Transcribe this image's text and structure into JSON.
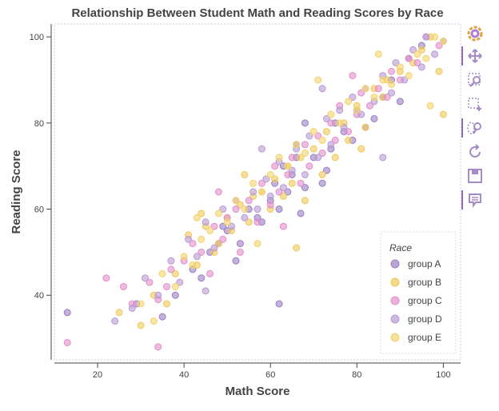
{
  "chart_data": {
    "type": "scatter",
    "title": "Relationship Between Student Math and Reading Scores by Race",
    "xlabel": "Math Score",
    "ylabel": "Reading Score",
    "xlim": [
      10,
      104
    ],
    "ylim": [
      25,
      103
    ],
    "xticks": [
      "20",
      "40",
      "60",
      "80",
      "100"
    ],
    "yticks": [
      "40",
      "60",
      "80",
      "100"
    ],
    "grid": false,
    "legend_position": "bottom-right",
    "legend_title": "Race",
    "series": [
      {
        "name": "group A",
        "color": "#9b7fc4",
        "x": [
          13,
          29,
          35,
          38,
          42,
          44,
          46,
          48,
          50,
          52,
          55,
          57,
          58,
          60,
          61,
          62,
          63,
          64,
          65,
          66,
          67,
          68,
          70,
          72,
          74,
          75,
          77,
          79,
          80,
          82,
          84,
          86,
          88,
          90,
          92,
          95,
          62,
          49,
          53,
          68,
          73,
          66
        ],
        "y": [
          36,
          38,
          35,
          40,
          46,
          44,
          50,
          52,
          55,
          48,
          60,
          58,
          57,
          62,
          66,
          60,
          70,
          64,
          68,
          72,
          59,
          65,
          72,
          66,
          74,
          80,
          78,
          76,
          83,
          79,
          81,
          86,
          90,
          85,
          95,
          98,
          38,
          56,
          52,
          80,
          69,
          75
        ]
      },
      {
        "name": "group B",
        "color": "#f0c95a",
        "x": [
          25,
          30,
          33,
          36,
          38,
          41,
          43,
          45,
          47,
          48,
          50,
          51,
          53,
          55,
          56,
          58,
          60,
          61,
          63,
          64,
          65,
          67,
          68,
          70,
          72,
          73,
          75,
          77,
          78,
          80,
          82,
          84,
          86,
          87,
          90,
          93,
          95,
          97,
          99,
          100,
          44,
          54,
          66,
          81
        ],
        "y": [
          36,
          33,
          40,
          38,
          45,
          54,
          47,
          56,
          50,
          52,
          58,
          55,
          61,
          57,
          63,
          64,
          60,
          67,
          63,
          70,
          66,
          72,
          62,
          74,
          68,
          78,
          72,
          80,
          76,
          84,
          79,
          88,
          86,
          90,
          92,
          94,
          97,
          100,
          92,
          82,
          59,
          68,
          51,
          74
        ]
      },
      {
        "name": "group C",
        "color": "#e38fcb",
        "x": [
          13,
          22,
          26,
          28,
          32,
          34,
          36,
          37,
          40,
          42,
          44,
          46,
          47,
          49,
          50,
          52,
          53,
          55,
          57,
          58,
          60,
          61,
          62,
          64,
          65,
          67,
          68,
          69,
          71,
          72,
          74,
          75,
          76,
          78,
          80,
          81,
          83,
          85,
          87,
          88,
          90,
          92,
          94,
          96,
          99,
          34,
          48,
          63,
          79
        ],
        "y": [
          29,
          44,
          42,
          38,
          43,
          39,
          42,
          46,
          48,
          52,
          50,
          45,
          56,
          53,
          58,
          60,
          50,
          62,
          57,
          66,
          61,
          70,
          64,
          68,
          72,
          66,
          75,
          70,
          77,
          73,
          80,
          76,
          84,
          78,
          82,
          87,
          84,
          88,
          86,
          92,
          90,
          95,
          94,
          100,
          98,
          28,
          64,
          56,
          91
        ]
      },
      {
        "name": "group D",
        "color": "#b99bd3",
        "x": [
          24,
          28,
          31,
          34,
          37,
          39,
          41,
          43,
          45,
          47,
          49,
          51,
          52,
          54,
          56,
          57,
          59,
          60,
          62,
          63,
          65,
          66,
          68,
          69,
          71,
          73,
          74,
          76,
          77,
          79,
          81,
          82,
          84,
          86,
          88,
          89,
          91,
          93,
          95,
          96,
          98,
          100,
          45,
          58,
          72,
          86
        ],
        "y": [
          34,
          37,
          44,
          40,
          48,
          43,
          53,
          49,
          57,
          51,
          60,
          56,
          62,
          58,
          64,
          60,
          67,
          63,
          71,
          65,
          69,
          74,
          68,
          77,
          72,
          81,
          75,
          83,
          79,
          86,
          82,
          88,
          85,
          91,
          87,
          94,
          90,
          97,
          93,
          100,
          96,
          99,
          41,
          74,
          88,
          72
        ]
      },
      {
        "name": "group E",
        "color": "#f3d36e",
        "x": [
          30,
          33,
          35,
          38,
          40,
          42,
          44,
          46,
          48,
          50,
          52,
          54,
          56,
          58,
          60,
          62,
          64,
          66,
          68,
          70,
          72,
          74,
          76,
          78,
          80,
          82,
          84,
          86,
          88,
          90,
          92,
          94,
          96,
          98,
          100,
          43,
          57,
          71,
          85,
          97
        ],
        "y": [
          38,
          34,
          45,
          42,
          49,
          47,
          53,
          55,
          59,
          57,
          62,
          60,
          66,
          64,
          68,
          72,
          70,
          75,
          73,
          78,
          76,
          82,
          80,
          85,
          83,
          88,
          86,
          90,
          89,
          93,
          91,
          96,
          95,
          100,
          99,
          58,
          52,
          90,
          96,
          84
        ]
      }
    ]
  },
  "toolbar": {
    "items": [
      {
        "name": "bokeh-logo-icon"
      },
      {
        "name": "pan-icon"
      },
      {
        "name": "box-zoom-icon"
      },
      {
        "name": "box-select-icon"
      },
      {
        "name": "lasso-zoom-icon"
      },
      {
        "name": "reset-icon"
      },
      {
        "name": "save-icon"
      },
      {
        "name": "hover-icon"
      }
    ]
  }
}
